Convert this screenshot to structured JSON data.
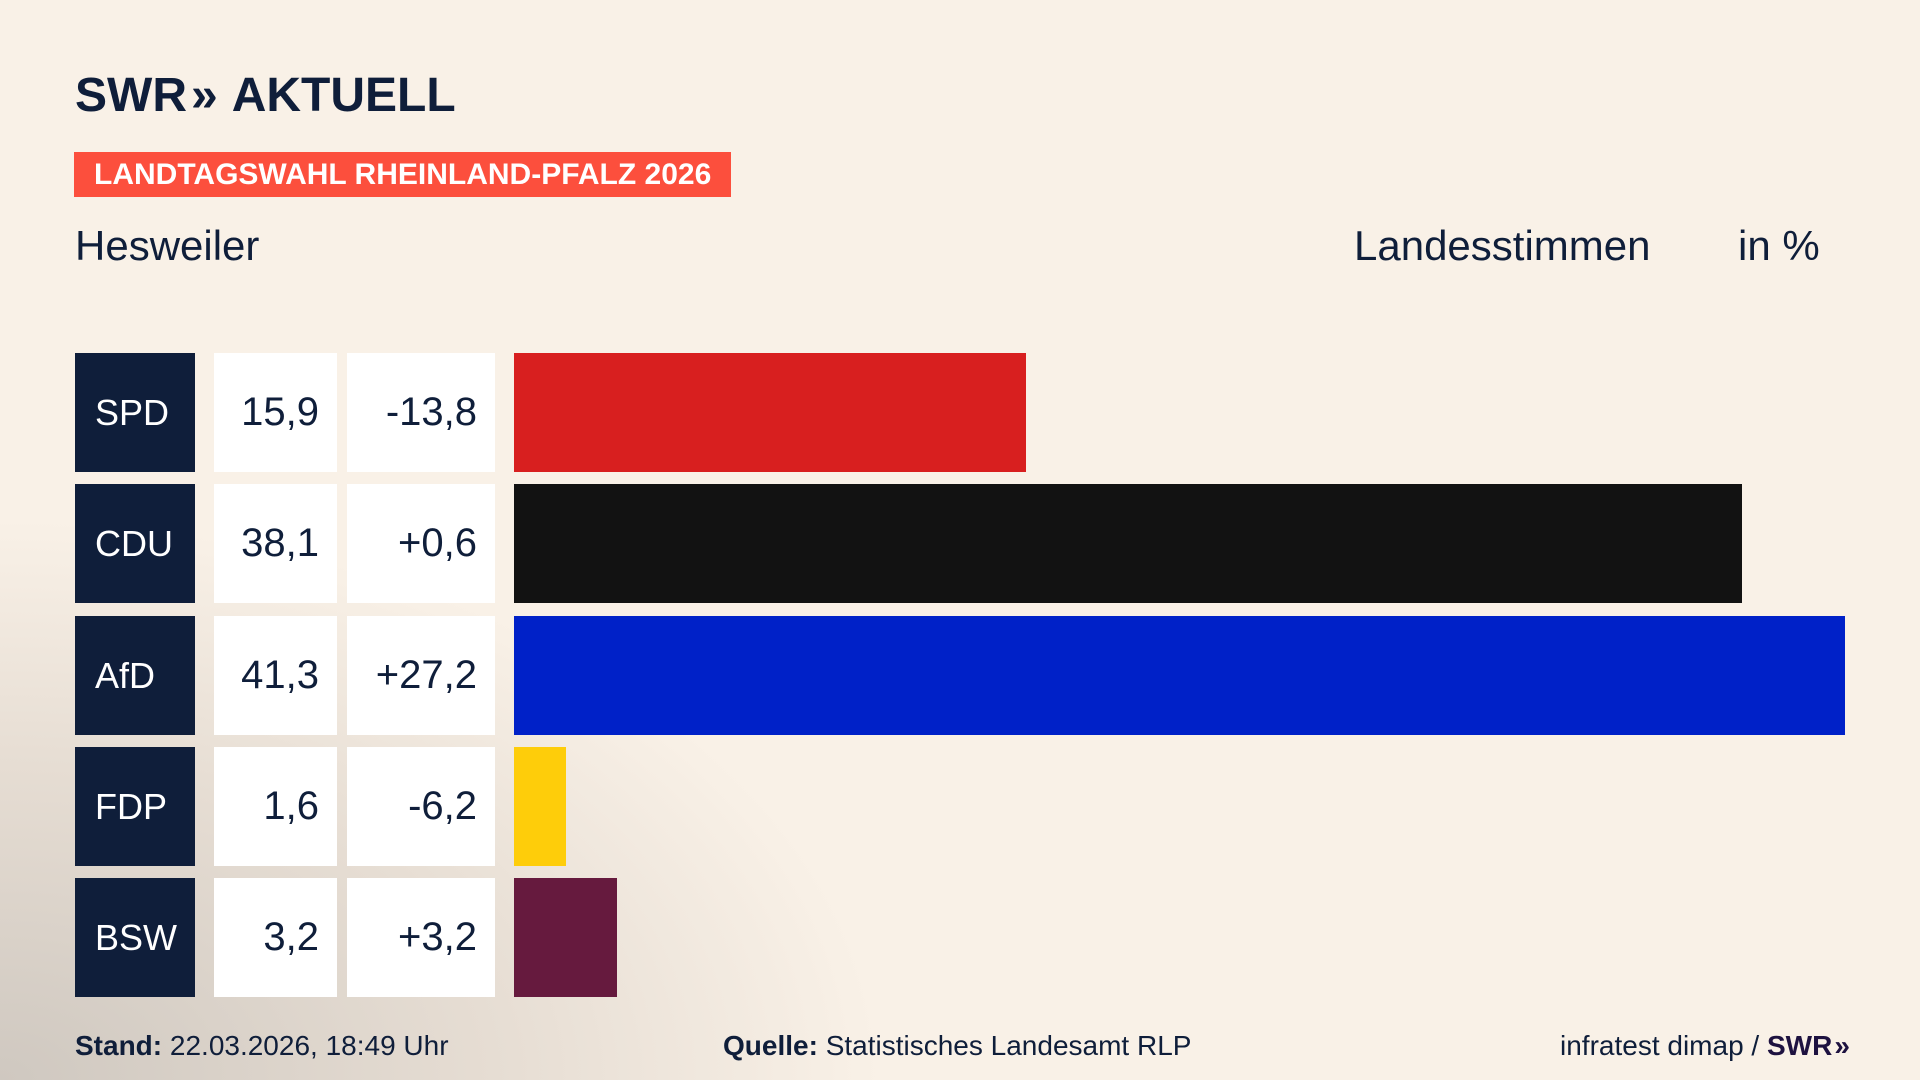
{
  "header": {
    "logo_brand": "SWR",
    "logo_chevrons": "»",
    "logo_product": "AKTUELL",
    "banner": "LANDTAGSWAHL RHEINLAND-PFALZ 2026"
  },
  "place": "Hesweiler",
  "measure_label": "Landesstimmen",
  "unit_label": "in %",
  "chart_data": {
    "type": "bar",
    "orientation": "horizontal",
    "categories": [
      "SPD",
      "CDU",
      "AfD",
      "FDP",
      "BSW"
    ],
    "values": [
      15.9,
      38.1,
      41.3,
      1.6,
      3.2
    ],
    "value_labels": [
      "15,9",
      "38,1",
      "41,3",
      "1,6",
      "3,2"
    ],
    "changes": [
      -13.8,
      0.6,
      27.2,
      -6.2,
      3.2
    ],
    "change_labels": [
      "-13,8",
      "+0,6",
      "+27,2",
      "-6,2",
      "+3,2"
    ],
    "colors": [
      "#d81f1f",
      "#121212",
      "#0021c8",
      "#fecd0a",
      "#661a3e"
    ],
    "xlim": [
      0,
      41.3
    ],
    "grid": false
  },
  "footer": {
    "stand_label": "Stand:",
    "stand_value": "22.03.2026, 18:49 Uhr",
    "source_label": "Quelle:",
    "source_value": "Statistisches Landesamt RLP",
    "credit": "infratest dimap /",
    "credit_brand": "SWR",
    "credit_chevrons": "»"
  }
}
